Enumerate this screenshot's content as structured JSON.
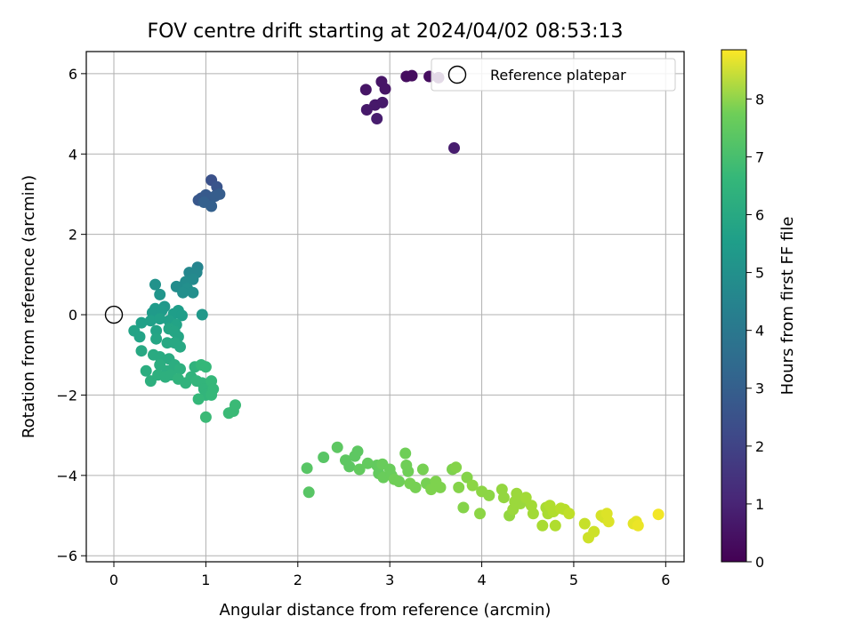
{
  "chart_data": {
    "type": "scatter",
    "title": "FOV centre drift starting at 2024/04/02 08:53:13",
    "xlabel": "Angular distance from reference (arcmin)",
    "ylabel": "Rotation from reference (arcmin)",
    "xlim": [
      -0.3,
      6.2
    ],
    "ylim": [
      -6.15,
      6.55
    ],
    "xticks": [
      0,
      1,
      2,
      3,
      4,
      5,
      6
    ],
    "yticks": [
      -6,
      -4,
      -2,
      0,
      2,
      4,
      6
    ],
    "grid": true,
    "legend": {
      "placement": "top-right",
      "entries": [
        "Reference platepar"
      ]
    },
    "colorbar": {
      "label": "Hours from first FF file",
      "range": [
        0,
        8.85
      ],
      "ticks": [
        0,
        1,
        2,
        3,
        4,
        5,
        6,
        7,
        8
      ],
      "colormap": "viridis"
    },
    "reference_point": {
      "x": 0,
      "y": 0,
      "label": "Reference platepar"
    },
    "series": [
      {
        "points": [
          [
            3.18,
            5.93,
            0.3
          ],
          [
            3.24,
            5.95,
            0.3
          ],
          [
            3.43,
            5.93,
            0.3
          ],
          [
            3.53,
            5.9,
            0.3
          ],
          [
            2.74,
            5.6,
            0.5
          ],
          [
            2.91,
            5.8,
            0.5
          ],
          [
            2.95,
            5.62,
            0.5
          ],
          [
            2.84,
            5.22,
            0.6
          ],
          [
            2.92,
            5.28,
            0.6
          ],
          [
            2.75,
            5.1,
            0.6
          ],
          [
            2.86,
            4.88,
            0.7
          ],
          [
            3.7,
            4.15,
            0.7
          ],
          [
            1.06,
            3.35,
            2.2
          ],
          [
            1.12,
            3.18,
            2.3
          ],
          [
            0.95,
            2.9,
            2.4
          ],
          [
            0.92,
            2.85,
            2.4
          ],
          [
            1.0,
            2.98,
            2.5
          ],
          [
            1.05,
            2.88,
            2.5
          ],
          [
            1.1,
            2.95,
            2.6
          ],
          [
            1.15,
            3.0,
            2.6
          ],
          [
            0.98,
            2.8,
            2.7
          ],
          [
            1.06,
            2.7,
            2.7
          ],
          [
            0.91,
            1.18,
            4.0
          ],
          [
            0.82,
            1.05,
            4.1
          ],
          [
            0.9,
            1.05,
            4.1
          ],
          [
            0.86,
            0.88,
            4.2
          ],
          [
            0.78,
            0.82,
            4.3
          ],
          [
            0.72,
            0.68,
            4.3
          ],
          [
            0.68,
            0.7,
            4.3
          ],
          [
            0.8,
            0.65,
            4.4
          ],
          [
            0.75,
            0.55,
            4.4
          ],
          [
            0.86,
            0.55,
            4.4
          ],
          [
            0.45,
            0.75,
            4.5
          ],
          [
            0.5,
            0.5,
            4.6
          ],
          [
            0.96,
            0.0,
            4.7
          ],
          [
            0.55,
            0.2,
            4.7
          ],
          [
            0.45,
            0.15,
            4.8
          ],
          [
            0.42,
            0.05,
            4.8
          ],
          [
            0.52,
            0.1,
            4.8
          ],
          [
            0.7,
            0.1,
            4.9
          ],
          [
            0.65,
            0.02,
            4.9
          ],
          [
            0.74,
            -0.02,
            4.9
          ],
          [
            0.3,
            -0.2,
            5.0
          ],
          [
            0.4,
            -0.15,
            5.0
          ],
          [
            0.5,
            -0.1,
            5.0
          ],
          [
            0.6,
            -0.15,
            5.0
          ],
          [
            0.68,
            -0.25,
            5.1
          ],
          [
            0.22,
            -0.4,
            5.1
          ],
          [
            0.28,
            -0.55,
            5.1
          ],
          [
            0.46,
            -0.4,
            5.1
          ],
          [
            0.6,
            -0.35,
            5.2
          ],
          [
            0.66,
            -0.42,
            5.2
          ],
          [
            0.7,
            -0.55,
            5.2
          ],
          [
            0.46,
            -0.6,
            5.2
          ],
          [
            0.58,
            -0.7,
            5.3
          ],
          [
            0.66,
            -0.7,
            5.3
          ],
          [
            0.72,
            -0.8,
            5.3
          ],
          [
            0.3,
            -0.9,
            5.3
          ],
          [
            0.43,
            -1.0,
            5.4
          ],
          [
            0.5,
            -1.05,
            5.4
          ],
          [
            0.6,
            -1.1,
            5.4
          ],
          [
            0.35,
            -1.4,
            5.5
          ],
          [
            0.5,
            -1.25,
            5.5
          ],
          [
            0.58,
            -1.4,
            5.5
          ],
          [
            0.66,
            -1.25,
            5.5
          ],
          [
            0.72,
            -1.35,
            5.6
          ],
          [
            0.4,
            -1.65,
            5.6
          ],
          [
            0.48,
            -1.5,
            5.6
          ],
          [
            0.56,
            -1.55,
            5.6
          ],
          [
            0.62,
            -1.5,
            5.6
          ],
          [
            0.7,
            -1.6,
            5.7
          ],
          [
            0.78,
            -1.7,
            5.7
          ],
          [
            0.84,
            -1.55,
            5.7
          ],
          [
            0.88,
            -1.3,
            5.7
          ],
          [
            0.9,
            -1.65,
            5.8
          ],
          [
            0.96,
            -1.7,
            5.8
          ],
          [
            0.98,
            -1.85,
            5.8
          ],
          [
            1.0,
            -2.0,
            5.8
          ],
          [
            1.06,
            -1.65,
            5.9
          ],
          [
            1.08,
            -1.85,
            5.9
          ],
          [
            1.06,
            -2.0,
            5.9
          ],
          [
            0.92,
            -2.1,
            5.9
          ],
          [
            0.95,
            -1.25,
            5.9
          ],
          [
            1.0,
            -1.3,
            5.9
          ],
          [
            1.0,
            -2.55,
            6.0
          ],
          [
            1.25,
            -2.45,
            6.0
          ],
          [
            1.3,
            -2.4,
            6.0
          ],
          [
            1.32,
            -2.25,
            6.0
          ],
          [
            2.1,
            -3.82,
            6.5
          ],
          [
            2.12,
            -4.42,
            6.5
          ],
          [
            2.28,
            -3.55,
            6.5
          ],
          [
            2.43,
            -3.3,
            6.6
          ],
          [
            2.52,
            -3.62,
            6.6
          ],
          [
            2.56,
            -3.78,
            6.6
          ],
          [
            2.62,
            -3.52,
            6.6
          ],
          [
            2.65,
            -3.4,
            6.6
          ],
          [
            2.67,
            -3.85,
            6.7
          ],
          [
            2.76,
            -3.7,
            6.7
          ],
          [
            2.86,
            -3.75,
            6.7
          ],
          [
            2.88,
            -3.95,
            6.7
          ],
          [
            2.92,
            -3.72,
            6.8
          ],
          [
            2.93,
            -4.05,
            6.8
          ],
          [
            3.0,
            -3.85,
            6.8
          ],
          [
            3.02,
            -4.0,
            6.8
          ],
          [
            3.05,
            -4.1,
            6.9
          ],
          [
            3.1,
            -4.15,
            6.9
          ],
          [
            3.17,
            -3.45,
            6.9
          ],
          [
            3.18,
            -3.75,
            6.9
          ],
          [
            3.2,
            -3.9,
            6.9
          ],
          [
            3.22,
            -4.2,
            7.0
          ],
          [
            3.28,
            -4.3,
            7.0
          ],
          [
            3.36,
            -3.85,
            7.0
          ],
          [
            3.4,
            -4.2,
            7.0
          ],
          [
            3.45,
            -4.35,
            7.1
          ],
          [
            3.5,
            -4.15,
            7.1
          ],
          [
            3.55,
            -4.3,
            7.1
          ],
          [
            3.68,
            -3.85,
            7.1
          ],
          [
            3.72,
            -3.8,
            7.2
          ],
          [
            3.75,
            -4.3,
            7.2
          ],
          [
            3.8,
            -4.8,
            7.2
          ],
          [
            3.84,
            -4.05,
            7.2
          ],
          [
            3.9,
            -4.25,
            7.3
          ],
          [
            3.98,
            -4.95,
            7.3
          ],
          [
            4.0,
            -4.4,
            7.3
          ],
          [
            4.08,
            -4.5,
            7.3
          ],
          [
            4.22,
            -4.35,
            7.4
          ],
          [
            4.24,
            -4.55,
            7.4
          ],
          [
            4.3,
            -5.0,
            7.4
          ],
          [
            4.34,
            -4.85,
            7.5
          ],
          [
            4.36,
            -4.65,
            7.5
          ],
          [
            4.38,
            -4.45,
            7.5
          ],
          [
            4.42,
            -4.7,
            7.5
          ],
          [
            4.48,
            -4.55,
            7.6
          ],
          [
            4.54,
            -4.75,
            7.6
          ],
          [
            4.56,
            -4.95,
            7.6
          ],
          [
            4.66,
            -5.25,
            7.7
          ],
          [
            4.7,
            -4.8,
            7.7
          ],
          [
            4.72,
            -4.95,
            7.7
          ],
          [
            4.74,
            -4.75,
            7.8
          ],
          [
            4.78,
            -4.9,
            7.8
          ],
          [
            4.8,
            -5.25,
            7.8
          ],
          [
            4.86,
            -4.82,
            7.9
          ],
          [
            4.9,
            -4.85,
            7.9
          ],
          [
            4.95,
            -4.95,
            8.0
          ],
          [
            5.12,
            -5.2,
            8.1
          ],
          [
            5.16,
            -5.55,
            8.2
          ],
          [
            5.22,
            -5.4,
            8.2
          ],
          [
            5.3,
            -5.0,
            8.3
          ],
          [
            5.33,
            -5.05,
            8.3
          ],
          [
            5.36,
            -4.95,
            8.4
          ],
          [
            5.38,
            -5.15,
            8.4
          ],
          [
            5.65,
            -5.2,
            8.5
          ],
          [
            5.68,
            -5.15,
            8.5
          ],
          [
            5.7,
            -5.25,
            8.6
          ],
          [
            5.92,
            -4.97,
            8.7
          ]
        ]
      }
    ]
  }
}
